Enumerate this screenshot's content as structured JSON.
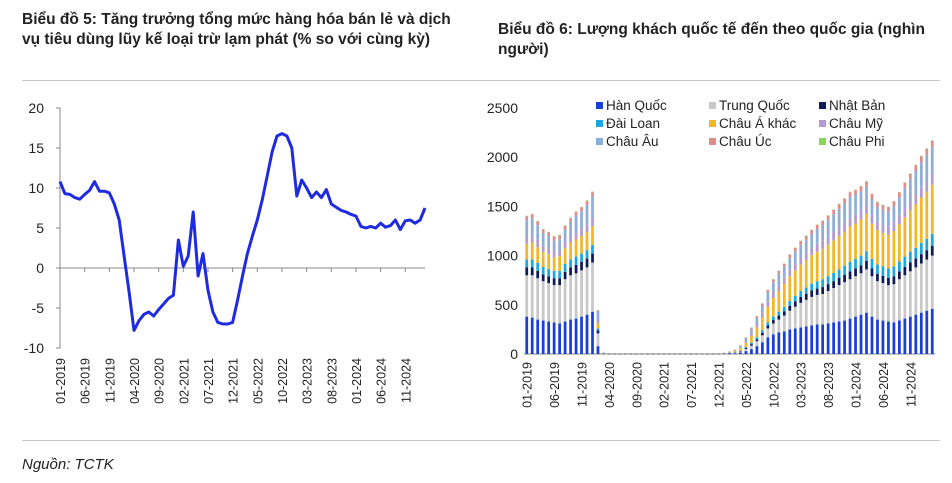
{
  "chart5": {
    "title": "Biểu đồ 5: Tăng trưởng tổng mức hàng hóa bán lẻ và dịch vụ tiêu dùng lũy kế loại trừ lạm phát (% so với cùng kỳ)"
  },
  "chart6": {
    "title": "Biểu đồ 6: Lượng khách quốc tế đến theo quốc gia (nghìn người)"
  },
  "source": "Nguồn: TCTK",
  "chart_data": [
    {
      "type": "line",
      "title": "Biểu đồ 5: Tăng trưởng tổng mức hàng hóa bán lẻ và dịch vụ tiêu dùng lũy kế loại trừ lạm phát (% so với cùng kỳ)",
      "xlabel": "",
      "ylabel": "",
      "ylim": [
        -10,
        20
      ],
      "yticks": [
        "20",
        "15",
        "10",
        "5",
        "0",
        "-5",
        "-10"
      ],
      "xticks": [
        "01-2019",
        "06-2019",
        "11-2019",
        "04-2020",
        "09-2020",
        "02-2021",
        "07-2021",
        "12-2021",
        "05-2022",
        "10-2022",
        "03-2023",
        "08-2023",
        "01-2024",
        "06-2024",
        "11-2024"
      ],
      "color": "#1f2be0",
      "values": [
        10.8,
        9.3,
        9.2,
        8.8,
        8.6,
        9.2,
        9.7,
        10.8,
        9.6,
        9.6,
        9.4,
        8.0,
        6.0,
        1.5,
        -3.0,
        -7.8,
        -6.6,
        -5.8,
        -5.5,
        -6.0,
        -5.2,
        -4.5,
        -3.8,
        -3.4,
        3.5,
        0.2,
        1.5,
        7.0,
        -1.0,
        1.8,
        -2.8,
        -5.5,
        -6.8,
        -7.0,
        -7.0,
        -6.8,
        -4.0,
        -1.0,
        1.8,
        4.0,
        6.0,
        8.5,
        11.5,
        14.5,
        16.5,
        16.8,
        16.5,
        15.0,
        9.0,
        11.0,
        10.0,
        8.8,
        9.5,
        8.8,
        9.8,
        8.0,
        7.6,
        7.2,
        7.0,
        6.7,
        6.5,
        5.2,
        5.0,
        5.2,
        5.0,
        5.6,
        5.1,
        5.3,
        6.0,
        4.8,
        5.9,
        6.0,
        5.6,
        6.0,
        7.5
      ]
    },
    {
      "type": "bar",
      "stacked": true,
      "title": "Biểu đồ 6: Lượng khách quốc tế đến theo quốc gia (nghìn người)",
      "ylim": [
        0,
        2500
      ],
      "yticks": [
        "2500",
        "2000",
        "1500",
        "1000",
        "500",
        "0"
      ],
      "xticks": [
        "01-2019",
        "06-2019",
        "11-2019",
        "04-2020",
        "09-2020",
        "02-2021",
        "07-2021",
        "12-2021",
        "05-2022",
        "10-2022",
        "03-2023",
        "08-2023",
        "01-2024",
        "06-2024",
        "11-2024"
      ],
      "legend_position": "top",
      "series": [
        {
          "name": "Hàn Quốc",
          "color": "#1a3fd8",
          "values": [
            380,
            370,
            350,
            340,
            330,
            320,
            310,
            330,
            350,
            360,
            380,
            400,
            430,
            80,
            2,
            1,
            1,
            1,
            1,
            1,
            1,
            1,
            1,
            1,
            1,
            1,
            1,
            1,
            1,
            1,
            1,
            1,
            1,
            1,
            1,
            1,
            2,
            5,
            8,
            15,
            30,
            50,
            80,
            120,
            170,
            200,
            220,
            230,
            250,
            260,
            270,
            280,
            290,
            300,
            300,
            310,
            320,
            330,
            340,
            360,
            380,
            400,
            420,
            380,
            350,
            340,
            330,
            320,
            340,
            360,
            380,
            400,
            420,
            440,
            460
          ]
        },
        {
          "name": "Trung Quốc",
          "color": "#c8c8c8",
          "values": [
            420,
            430,
            420,
            400,
            390,
            380,
            390,
            430,
            450,
            460,
            470,
            480,
            500,
            130,
            3,
            2,
            2,
            2,
            2,
            2,
            2,
            2,
            2,
            2,
            2,
            2,
            2,
            2,
            2,
            2,
            2,
            2,
            2,
            2,
            2,
            2,
            2,
            3,
            5,
            10,
            20,
            35,
            50,
            70,
            90,
            110,
            130,
            160,
            190,
            220,
            250,
            270,
            290,
            300,
            310,
            330,
            350,
            370,
            390,
            400,
            410,
            420,
            440,
            410,
            390,
            380,
            370,
            390,
            420,
            440,
            460,
            480,
            500,
            520,
            540
          ]
        },
        {
          "name": "Nhật Bản",
          "color": "#101a5a",
          "values": [
            80,
            80,
            75,
            70,
            70,
            70,
            70,
            75,
            80,
            85,
            85,
            90,
            90,
            30,
            1,
            1,
            1,
            1,
            1,
            1,
            1,
            1,
            1,
            1,
            1,
            1,
            1,
            1,
            1,
            1,
            1,
            1,
            1,
            1,
            1,
            1,
            1,
            2,
            3,
            5,
            10,
            15,
            20,
            25,
            30,
            35,
            40,
            45,
            50,
            55,
            60,
            60,
            65,
            65,
            70,
            70,
            70,
            75,
            75,
            80,
            80,
            80,
            85,
            80,
            75,
            75,
            75,
            80,
            80,
            85,
            90,
            90,
            95,
            95,
            100
          ]
        },
        {
          "name": "Đài Loan",
          "color": "#1aa8e0",
          "values": [
            80,
            80,
            80,
            75,
            75,
            75,
            75,
            80,
            80,
            85,
            85,
            85,
            90,
            20,
            1,
            1,
            1,
            1,
            1,
            1,
            1,
            1,
            1,
            1,
            1,
            1,
            1,
            1,
            1,
            1,
            1,
            1,
            1,
            1,
            1,
            1,
            1,
            2,
            3,
            5,
            10,
            15,
            20,
            25,
            30,
            35,
            40,
            45,
            50,
            55,
            60,
            65,
            70,
            75,
            80,
            80,
            85,
            85,
            90,
            95,
            95,
            100,
            100,
            95,
            95,
            95,
            95,
            100,
            100,
            105,
            110,
            110,
            115,
            115,
            120
          ]
        },
        {
          "name": "Châu Á khác",
          "color": "#f2b627",
          "values": [
            160,
            170,
            160,
            150,
            150,
            140,
            150,
            160,
            170,
            175,
            180,
            185,
            190,
            50,
            2,
            1,
            1,
            1,
            1,
            1,
            1,
            1,
            1,
            1,
            1,
            1,
            1,
            1,
            1,
            1,
            1,
            1,
            1,
            1,
            1,
            1,
            2,
            5,
            12,
            25,
            45,
            70,
            100,
            130,
            160,
            190,
            210,
            230,
            250,
            260,
            270,
            280,
            290,
            300,
            310,
            320,
            330,
            340,
            350,
            360,
            360,
            370,
            380,
            360,
            350,
            340,
            340,
            360,
            380,
            400,
            420,
            440,
            460,
            480,
            500
          ]
        },
        {
          "name": "Châu Mỹ",
          "color": "#b49ad2",
          "values": [
            80,
            80,
            75,
            65,
            60,
            55,
            55,
            60,
            65,
            70,
            70,
            75,
            80,
            30,
            1,
            1,
            1,
            1,
            1,
            1,
            1,
            1,
            1,
            1,
            1,
            1,
            1,
            1,
            1,
            1,
            1,
            1,
            1,
            1,
            1,
            1,
            1,
            2,
            4,
            8,
            15,
            25,
            35,
            45,
            55,
            60,
            65,
            65,
            70,
            70,
            75,
            75,
            75,
            80,
            80,
            80,
            85,
            85,
            85,
            90,
            90,
            90,
            95,
            90,
            85,
            85,
            85,
            90,
            90,
            95,
            95,
            100,
            100,
            105,
            105
          ]
        },
        {
          "name": "Châu Âu",
          "color": "#8faed6",
          "values": [
            160,
            170,
            150,
            130,
            120,
            110,
            115,
            130,
            150,
            170,
            180,
            200,
            220,
            90,
            2,
            1,
            1,
            1,
            1,
            1,
            1,
            1,
            1,
            1,
            1,
            1,
            1,
            1,
            1,
            1,
            1,
            1,
            1,
            1,
            1,
            1,
            2,
            4,
            8,
            15,
            30,
            45,
            60,
            75,
            90,
            100,
            110,
            110,
            115,
            120,
            125,
            130,
            140,
            150,
            160,
            170,
            180,
            190,
            200,
            210,
            200,
            190,
            180,
            160,
            150,
            150,
            150,
            160,
            180,
            200,
            220,
            240,
            260,
            270,
            280
          ]
        },
        {
          "name": "Châu Úc",
          "color": "#e08c8c",
          "values": [
            40,
            40,
            38,
            35,
            40,
            45,
            42,
            38,
            35,
            38,
            40,
            42,
            45,
            15,
            1,
            1,
            1,
            1,
            1,
            1,
            1,
            1,
            1,
            1,
            1,
            1,
            1,
            1,
            1,
            1,
            1,
            1,
            1,
            1,
            1,
            1,
            1,
            1,
            2,
            4,
            8,
            12,
            18,
            22,
            25,
            28,
            30,
            32,
            35,
            38,
            38,
            40,
            40,
            42,
            42,
            45,
            45,
            48,
            48,
            50,
            50,
            52,
            52,
            50,
            48,
            48,
            48,
            50,
            52,
            55,
            55,
            58,
            58,
            60,
            60
          ]
        },
        {
          "name": "Châu Phi",
          "color": "#8ad45a",
          "values": [
            5,
            5,
            5,
            5,
            5,
            5,
            5,
            5,
            5,
            5,
            5,
            5,
            5,
            2,
            0,
            0,
            0,
            0,
            0,
            0,
            0,
            0,
            0,
            0,
            0,
            0,
            0,
            0,
            0,
            0,
            0,
            0,
            0,
            0,
            0,
            0,
            0,
            0,
            0,
            1,
            1,
            2,
            2,
            3,
            3,
            3,
            3,
            3,
            4,
            4,
            4,
            4,
            4,
            4,
            4,
            5,
            5,
            5,
            5,
            5,
            5,
            5,
            5,
            5,
            5,
            5,
            5,
            5,
            5,
            5,
            5,
            6,
            6,
            6,
            6
          ]
        }
      ]
    }
  ]
}
